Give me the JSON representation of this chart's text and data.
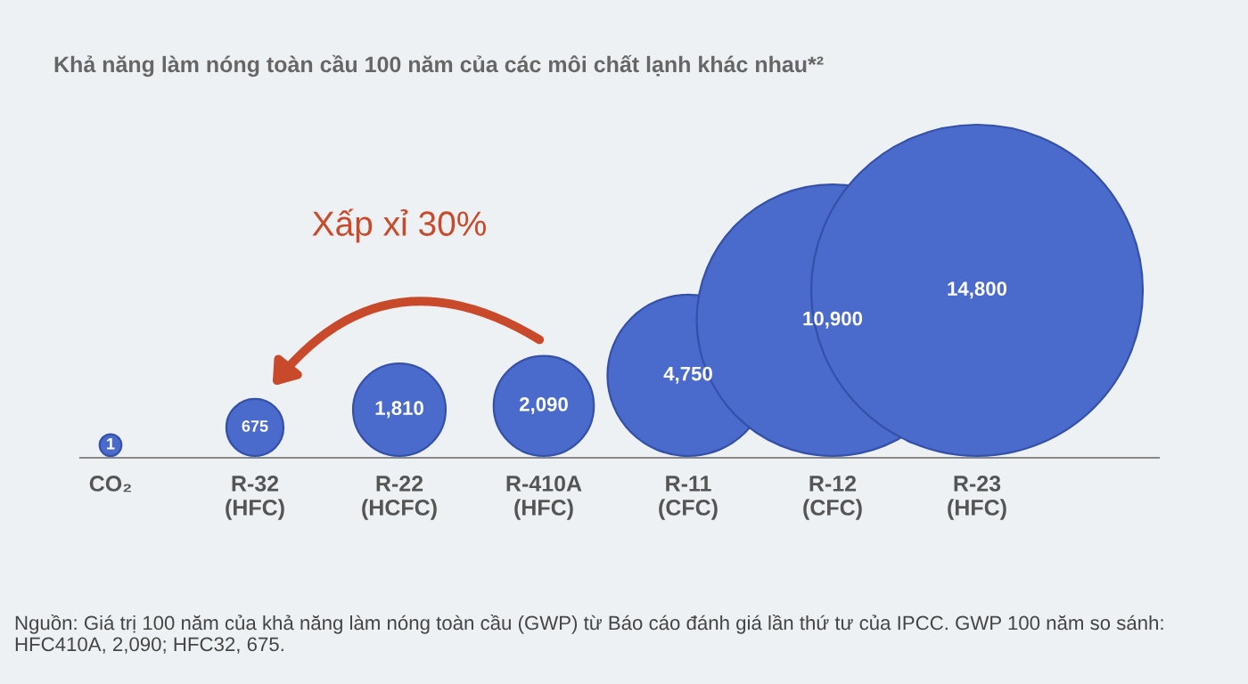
{
  "chart_data": {
    "type": "other",
    "title": "Khả năng làm nóng toàn cầu 100 năm của các môi chất lạnh khác nhau*²",
    "categories": [
      "CO₂",
      "R-32\n(HFC)",
      "R-22\n(HCFC)",
      "R-410A\n(HFC)",
      "R-11\n(CFC)",
      "R-12\n(CFC)",
      "R-23\n(HFC)"
    ],
    "values": [
      1,
      675,
      1810,
      2090,
      4750,
      10900,
      14800
    ],
    "value_labels": [
      "1",
      "675",
      "1,810",
      "2,090",
      "4,750",
      "10,900",
      "14,800"
    ],
    "color": "#4a6bcc",
    "annotations": [
      "Xấp xỉ 30%",
      "Nguồn: Giá trị 100 năm của khả năng làm nóng toàn cầu (GWP) từ Báo cáo đánh giá lần thứ tư của IPCC. GWP 100 năm so sánh: HFC410A, 2,090; HFC32, 675."
    ]
  }
}
